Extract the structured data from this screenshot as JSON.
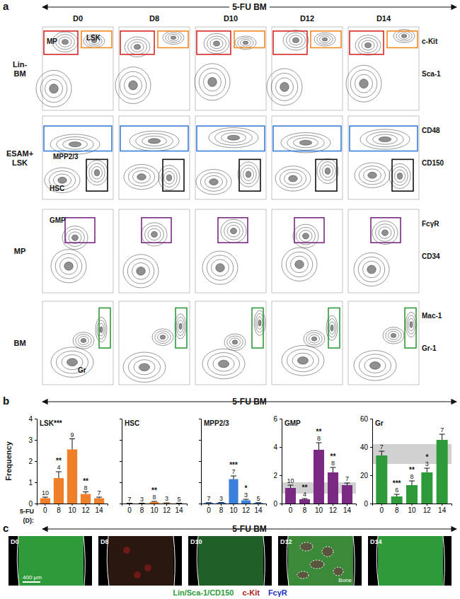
{
  "panel_labels": [
    "a",
    "b",
    "c"
  ],
  "header": "5-FU BM",
  "flow": {
    "days": [
      "D0",
      "D8",
      "D10",
      "D12",
      "D14"
    ],
    "rows": [
      {
        "label": [
          "Lin-",
          "BM"
        ],
        "axes": [
          "c-Kit",
          "Sca-1"
        ],
        "gates": [
          "MP",
          "LSK"
        ]
      },
      {
        "label": [
          "ESAM+",
          "LSK"
        ],
        "axes": [
          "CD48",
          "CD150"
        ],
        "gates": [
          "MPP2/3",
          "HSC"
        ]
      },
      {
        "label": [
          "MP"
        ],
        "axes": [
          "FcγR",
          "CD34"
        ],
        "gates": [
          "GMP"
        ]
      },
      {
        "label": [
          "BM"
        ],
        "axes": [
          "Mac-1",
          "Gr-1"
        ],
        "gates": [
          "Gr"
        ]
      }
    ]
  },
  "chart_data": [
    {
      "type": "bar",
      "title": "LSK***",
      "y_label": "Frequency",
      "x_prefix": "5-FU",
      "x_label": "(D):",
      "categories": [
        "0",
        "8",
        "10",
        "12",
        "14"
      ],
      "values": [
        0.25,
        1.2,
        2.55,
        0.45,
        0.25
      ],
      "errors": [
        0.05,
        0.3,
        0.5,
        0.1,
        0.05
      ],
      "n": [
        10,
        4,
        9,
        8,
        7
      ],
      "significance": [
        null,
        "**",
        null,
        "**",
        null
      ],
      "color": "#f07f2a",
      "ylim": [
        0,
        4
      ],
      "yticks": [
        0,
        1,
        2,
        3,
        4
      ]
    },
    {
      "type": "bar",
      "title": "HSC",
      "categories": [
        "0",
        "8",
        "10",
        "12",
        "14"
      ],
      "values": [
        0.01,
        0.01,
        0.07,
        0.02,
        0.01
      ],
      "errors": [
        0.005,
        0.005,
        0.03,
        0.01,
        0.005
      ],
      "n": [
        7,
        3,
        8,
        3,
        5
      ],
      "significance": [
        null,
        null,
        "**",
        null,
        null
      ],
      "color": "#f07f2a",
      "ylim": [
        0,
        4
      ],
      "yticks": [
        0,
        1,
        2,
        3,
        4
      ],
      "tick_labels": "x"
    },
    {
      "type": "bar",
      "title": "MPP2/3",
      "categories": [
        "0",
        "8",
        "10",
        "12",
        "14"
      ],
      "values": [
        0.03,
        0.04,
        1.15,
        0.15,
        0.03
      ],
      "errors": [
        0.01,
        0.01,
        0.15,
        0.05,
        0.01
      ],
      "n": [
        7,
        3,
        7,
        3,
        5
      ],
      "significance": [
        null,
        null,
        "***",
        "*",
        null
      ],
      "color": "#3a7fd9",
      "ylim": [
        0,
        4
      ],
      "yticks": [
        0,
        1,
        2,
        3,
        4
      ],
      "tick_labels": "x"
    },
    {
      "type": "bar",
      "title": "GMP",
      "categories": [
        "0",
        "8",
        "10",
        "12",
        "14"
      ],
      "values": [
        1.1,
        0.3,
        3.8,
        2.2,
        1.3
      ],
      "errors": [
        0.2,
        0.05,
        0.5,
        0.35,
        0.15
      ],
      "n": [
        10,
        4,
        8,
        8,
        7
      ],
      "significance": [
        null,
        "**",
        "**",
        "**",
        null
      ],
      "reference_band": [
        0.7,
        1.5
      ],
      "color": "#7a2a82",
      "ylim": [
        0,
        6
      ],
      "yticks": [
        0,
        2,
        4,
        6
      ]
    },
    {
      "type": "bar",
      "title": "Gr",
      "categories": [
        "0",
        "8",
        "10",
        "12",
        "14"
      ],
      "values": [
        34,
        5,
        13,
        22,
        45
      ],
      "errors": [
        3,
        1.5,
        3,
        3,
        4
      ],
      "n": [
        7,
        6,
        8,
        3,
        7
      ],
      "significance": [
        null,
        "***",
        "**",
        "*",
        null
      ],
      "reference_band": [
        28,
        42
      ],
      "color": "#2e9a3a",
      "ylim": [
        0,
        60
      ],
      "yticks": [
        0,
        20,
        40,
        60
      ]
    }
  ],
  "images": {
    "days": [
      "D0",
      "D8",
      "D10",
      "D12",
      "D14"
    ],
    "scale_bar": "400 µm",
    "bone_label": "Bone",
    "legend": [
      {
        "text": "Lin/Sca-1/CD150",
        "color": "#2e9a3a"
      },
      {
        "text": "c-Kit",
        "color": "#b02020"
      },
      {
        "text": "FcγR",
        "color": "#2030c0"
      }
    ]
  }
}
